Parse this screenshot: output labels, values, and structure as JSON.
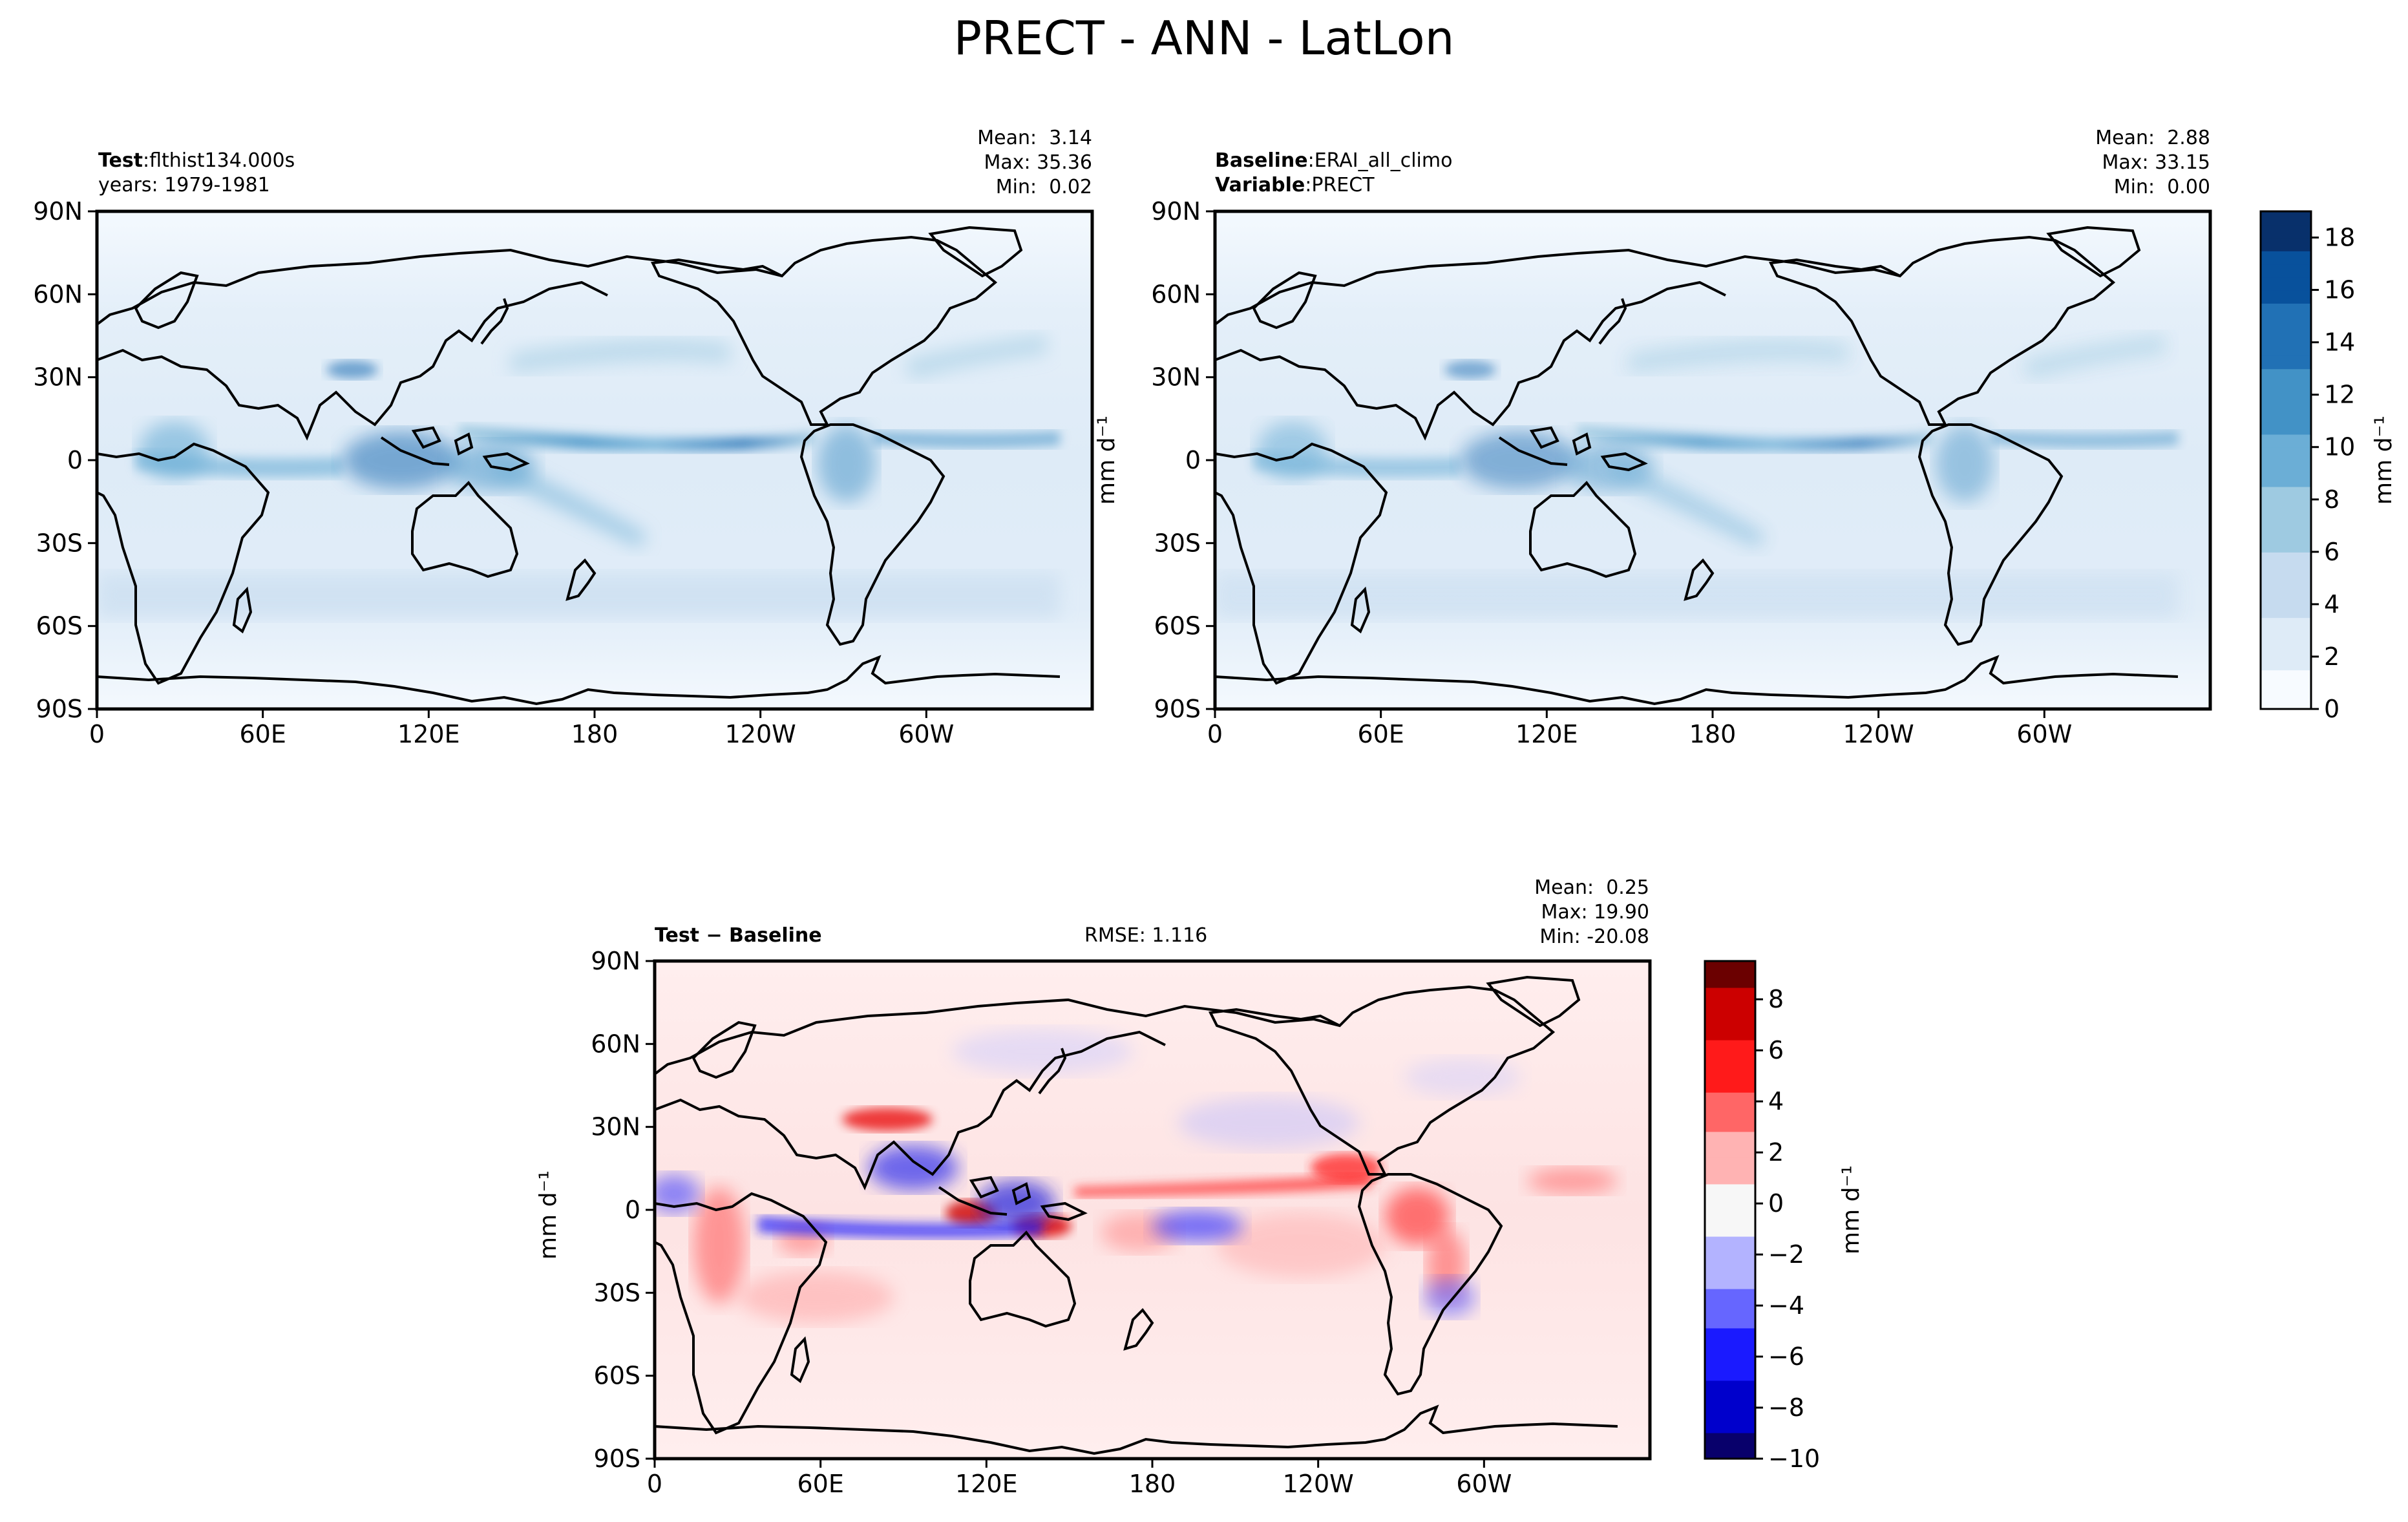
{
  "figure_title": "PRECT - ANN - LatLon",
  "panels": [
    {
      "id": "test",
      "info_line1_bold": "Test",
      "info_line1_rest": "flthist134.000s",
      "info_line2_bold": "",
      "info_line2_rest": "years: 1979-1981",
      "stats": {
        "mean": "Mean:  3.14",
        "max": "Max: 35.36",
        "min": "Min:  0.02"
      },
      "rmse": ""
    },
    {
      "id": "baseline",
      "info_line1_bold": "Baseline",
      "info_line1_rest": "ERAI_all_climo",
      "info_line2_bold": "Variable",
      "info_line2_rest": "PRECT",
      "stats": {
        "mean": "Mean:  2.88",
        "max": "Max: 33.15",
        "min": "Min:  0.00"
      },
      "rmse": ""
    },
    {
      "id": "diff",
      "info_line1_bold": "Test − Baseline",
      "info_line1_rest": "",
      "info_line2_bold": "",
      "info_line2_rest": "",
      "stats": {
        "mean": "Mean:  0.25",
        "max": "Max: 19.90",
        "min": "Min: -20.08"
      },
      "rmse": "RMSE: 1.116"
    }
  ],
  "colorbars": {
    "precip": {
      "label": "mm d⁻¹",
      "ticks": [
        "0",
        "2",
        "4",
        "6",
        "8",
        "10",
        "12",
        "14",
        "16",
        "18"
      ],
      "range": [
        0,
        19
      ],
      "colors": [
        "#f7fbff",
        "#deebf7",
        "#c6dbef",
        "#9ecae1",
        "#6baed6",
        "#4292c6",
        "#2171b5",
        "#08519c",
        "#08306b"
      ]
    },
    "diff": {
      "label": "mm d⁻¹",
      "ticks": [
        "−10",
        "−8",
        "−6",
        "−4",
        "−2",
        "0",
        "2",
        "4",
        "6",
        "8"
      ],
      "range": [
        -10,
        9.5
      ],
      "colors": [
        "#08006b",
        "#0000cc",
        "#1a1aff",
        "#6666ff",
        "#b3b3ff",
        "#f7f7f7",
        "#ffb3b3",
        "#ff6666",
        "#ff1a1a",
        "#cc0000",
        "#6b0000"
      ]
    }
  },
  "axis_ylabel": "mm d⁻¹",
  "chart_data": [
    {
      "type": "heatmap",
      "title": "",
      "x_ticks": [
        "0",
        "60E",
        "120E",
        "180",
        "120W",
        "60W"
      ],
      "y_ticks": [
        "90N",
        "60N",
        "30N",
        "0",
        "30S",
        "60S",
        "90S"
      ],
      "xlim": [
        0,
        360
      ],
      "ylim": [
        -90,
        90
      ],
      "colorbar_ticks": [
        0,
        2,
        4,
        6,
        8,
        10,
        12,
        14,
        16,
        18
      ],
      "mean": 3.14,
      "max": 35.36,
      "min": 0.02
    },
    {
      "type": "heatmap",
      "title": "",
      "x_ticks": [
        "0",
        "60E",
        "120E",
        "180",
        "120W",
        "60W"
      ],
      "y_ticks": [
        "90N",
        "60N",
        "30N",
        "0",
        "30S",
        "60S",
        "90S"
      ],
      "xlim": [
        0,
        360
      ],
      "ylim": [
        -90,
        90
      ],
      "colorbar_ticks": [
        0,
        2,
        4,
        6,
        8,
        10,
        12,
        14,
        16,
        18
      ],
      "mean": 2.88,
      "max": 33.15,
      "min": 0.0
    },
    {
      "type": "heatmap",
      "title": "",
      "x_ticks": [
        "0",
        "60E",
        "120E",
        "180",
        "120W",
        "60W"
      ],
      "y_ticks": [
        "90N",
        "60N",
        "30N",
        "0",
        "30S",
        "60S",
        "90S"
      ],
      "xlim": [
        0,
        360
      ],
      "ylim": [
        -90,
        90
      ],
      "colorbar_ticks": [
        -10,
        -8,
        -6,
        -4,
        -2,
        0,
        2,
        4,
        6,
        8
      ],
      "mean": 0.25,
      "max": 19.9,
      "min": -20.08,
      "rmse": 1.116
    }
  ]
}
